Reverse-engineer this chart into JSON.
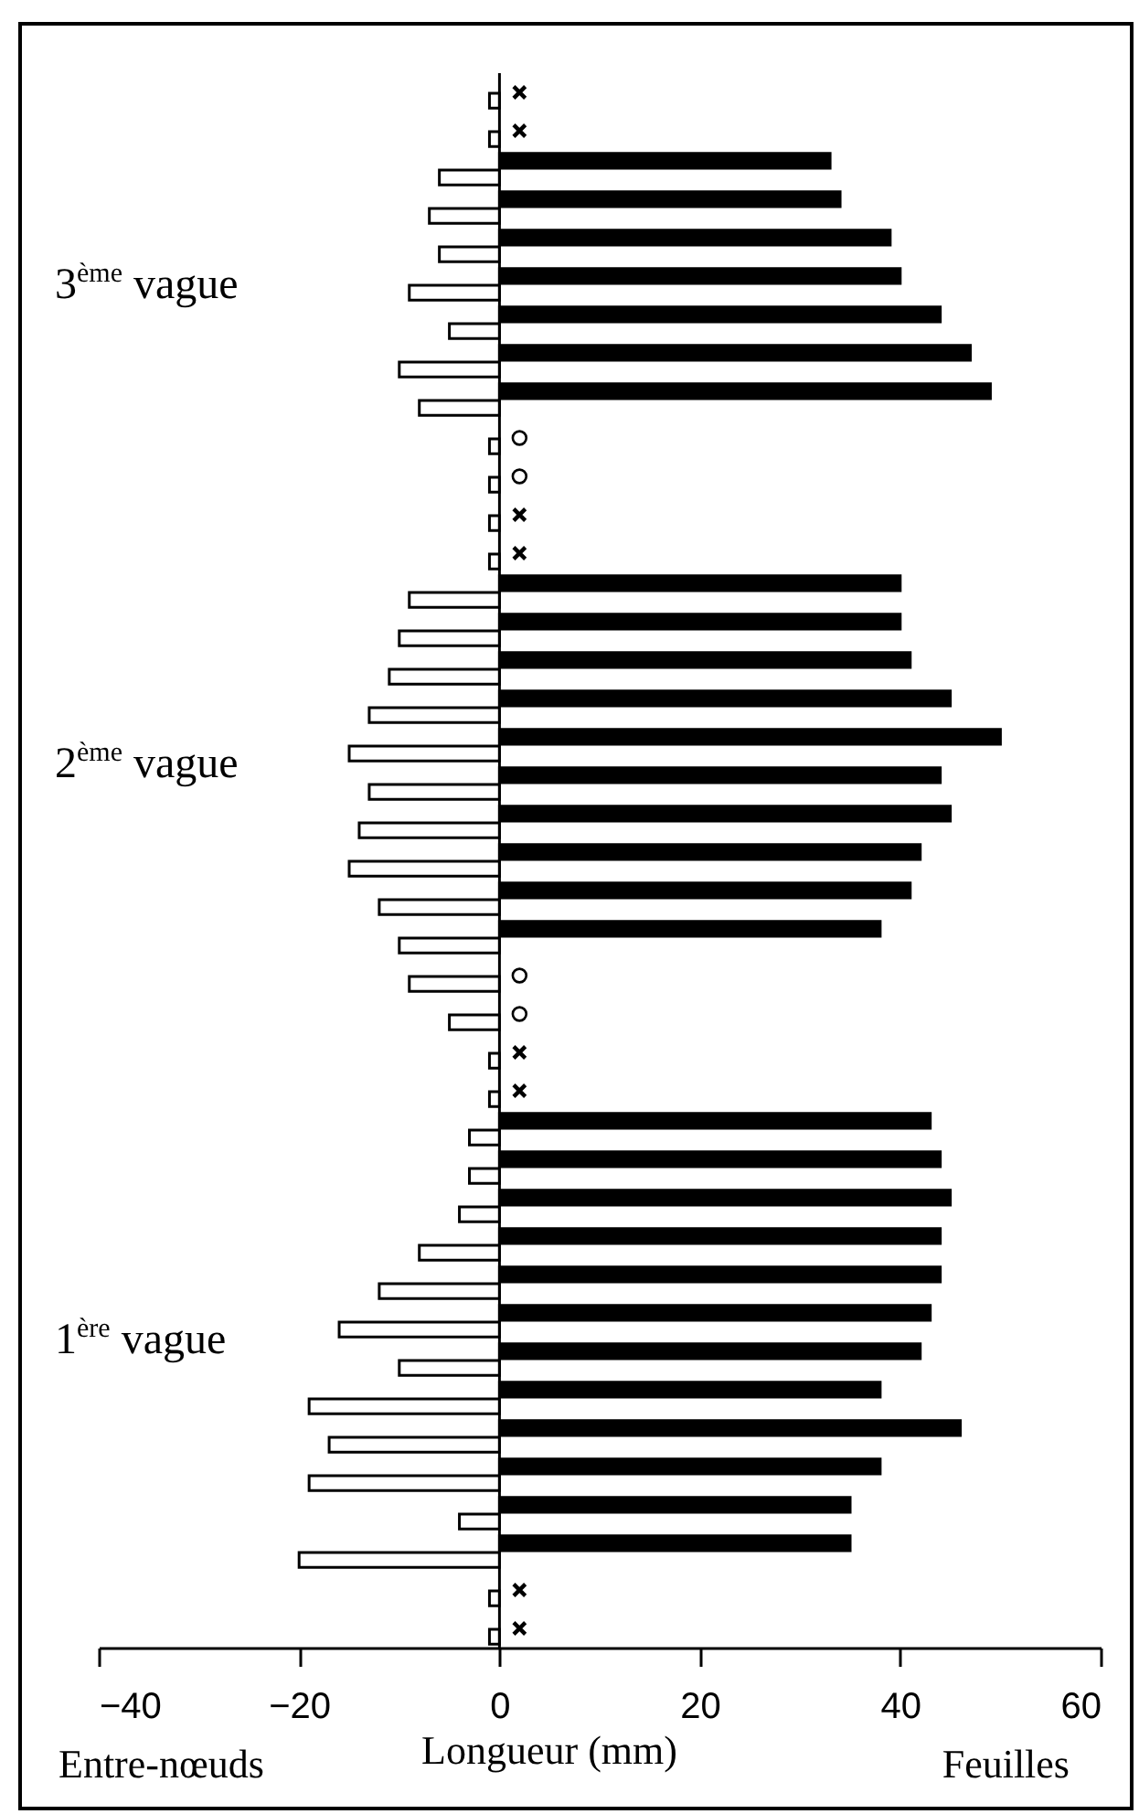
{
  "chart_data": {
    "type": "bar",
    "orientation": "horizontal",
    "xlabel": "Longueur (mm)",
    "categories": [
      null,
      null,
      null,
      null,
      null,
      null,
      null,
      null,
      null,
      null,
      null,
      null,
      null,
      null,
      null,
      null,
      null,
      null,
      null,
      null,
      null,
      null,
      null,
      null,
      null,
      null,
      null,
      null,
      null,
      null,
      null,
      null,
      null,
      null,
      null,
      null,
      null,
      null,
      null,
      null,
      null
    ],
    "series": [
      {
        "color": "#000000",
        "values": [
          null,
          null,
          33,
          34,
          39,
          40,
          44,
          47,
          49,
          null,
          null,
          null,
          null,
          40,
          40,
          41,
          45,
          50,
          44,
          45,
          42,
          41,
          38,
          null,
          null,
          null,
          null,
          43,
          44,
          45,
          44,
          44,
          43,
          42,
          38,
          46,
          38,
          35,
          35,
          null,
          null
        ]
      },
      {
        "color": "#ffffff",
        "values": [
          -1,
          -1,
          -6,
          -7,
          -6,
          -9,
          -5,
          -10,
          -8,
          -1,
          -1,
          -1,
          -1,
          -9,
          -10,
          -11,
          -13,
          -15,
          -13,
          -14,
          -15,
          -12,
          -10,
          -9,
          -5,
          -1,
          -1,
          -3,
          -3,
          -4,
          -8,
          -12,
          -16,
          -10,
          -19,
          -17,
          -19,
          -4,
          -20,
          -1,
          -1
        ]
      },
      {
        "type": "scatter",
        "marker": "cross",
        "color": "#000000",
        "values": [
          2,
          2,
          null,
          null,
          null,
          null,
          null,
          null,
          null,
          null,
          null,
          2,
          2,
          null,
          null,
          null,
          null,
          null,
          null,
          null,
          null,
          null,
          null,
          null,
          null,
          2,
          2,
          null,
          null,
          null,
          null,
          null,
          null,
          null,
          null,
          null,
          null,
          null,
          null,
          2,
          2
        ]
      },
      {
        "type": "scatter",
        "marker": "circle",
        "color": "#000000",
        "values": [
          null,
          null,
          null,
          null,
          null,
          null,
          null,
          null,
          null,
          2,
          2,
          null,
          null,
          null,
          null,
          null,
          null,
          null,
          null,
          null,
          null,
          null,
          null,
          2,
          2,
          null,
          null,
          null,
          null,
          null,
          null,
          null,
          null,
          null,
          null,
          null,
          null,
          null,
          null,
          null,
          null
        ]
      }
    ],
    "xlim": [
      -40,
      60
    ],
    "xticks": [
      -40,
      -20,
      0,
      20,
      40,
      60
    ],
    "ref_lines": [
      {
        "axis": "x",
        "value": 0
      }
    ],
    "annotations": [
      "3$^{ème}$ vague",
      "2$^{ème}$ vague",
      "1$^{ère}$ vague",
      "Entre-nœuds",
      "Feuilles"
    ]
  }
}
